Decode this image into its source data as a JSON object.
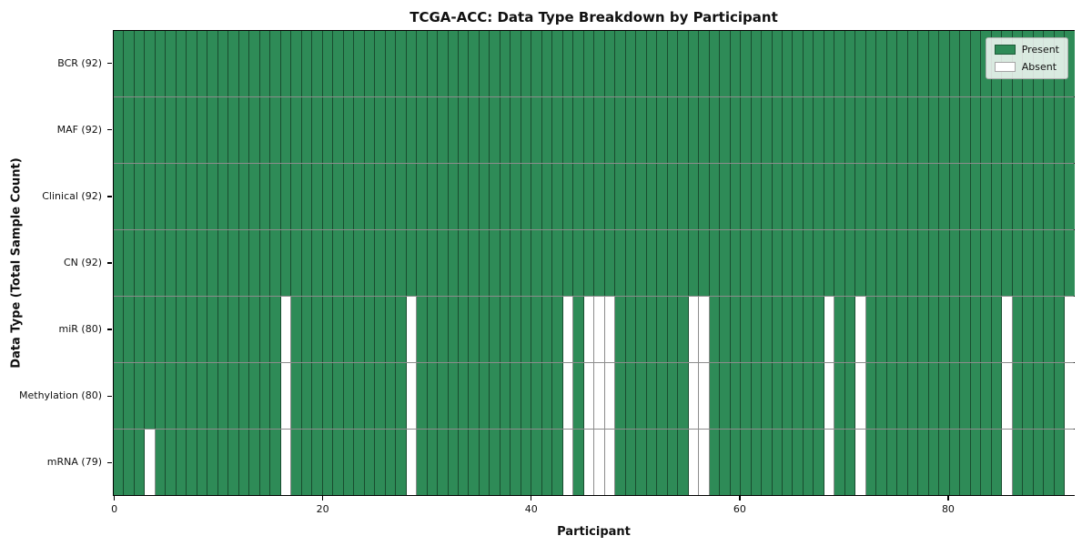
{
  "chart_data": {
    "type": "heatmap",
    "title": "TCGA-ACC: Data Type Breakdown by Participant",
    "xlabel": "Participant",
    "ylabel": "Data Type (Total Sample Count)",
    "n_participants": 92,
    "xlim": [
      0,
      92
    ],
    "x_ticks": [
      0,
      20,
      40,
      60,
      80
    ],
    "grid": false,
    "legend_position": "upper right",
    "colors": {
      "present": "#2e8b57",
      "absent": "#ffffff",
      "cell_edge": "rgba(0,0,0,0.45)",
      "row_separator": "#8c8c8c",
      "spine": "#000000"
    },
    "legend": [
      {
        "name": "present",
        "label": "Present",
        "color": "#2e8b57"
      },
      {
        "name": "absent",
        "label": "Absent",
        "color": "#ffffff"
      }
    ],
    "rows": [
      {
        "label": "BCR (92)",
        "total": 92,
        "absent_participants": []
      },
      {
        "label": "MAF (92)",
        "total": 92,
        "absent_participants": []
      },
      {
        "label": "Clinical (92)",
        "total": 92,
        "absent_participants": []
      },
      {
        "label": "CN (92)",
        "total": 92,
        "absent_participants": []
      },
      {
        "label": "miR (80)",
        "total": 80,
        "absent_participants": [
          16,
          28,
          43,
          45,
          46,
          47,
          55,
          56,
          68,
          71,
          85,
          91
        ]
      },
      {
        "label": "Methylation (80)",
        "total": 80,
        "absent_participants": [
          16,
          28,
          43,
          45,
          46,
          47,
          55,
          56,
          68,
          71,
          85,
          91
        ]
      },
      {
        "label": "mRNA (79)",
        "total": 79,
        "absent_participants": [
          3,
          16,
          28,
          43,
          45,
          46,
          47,
          55,
          56,
          68,
          71,
          85,
          91
        ]
      }
    ]
  }
}
